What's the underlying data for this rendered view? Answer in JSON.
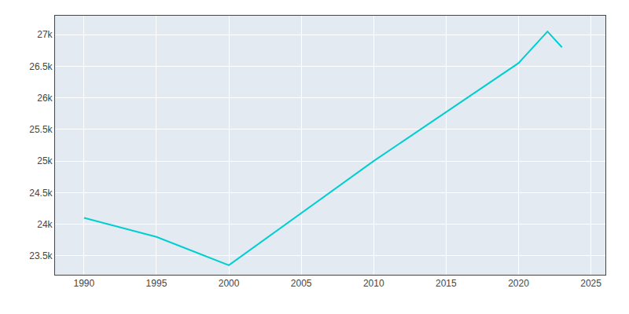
{
  "chart_data": {
    "type": "line",
    "x": [
      1990,
      1995,
      2000,
      2010,
      2020,
      2022,
      2023
    ],
    "values": [
      24100,
      23800,
      23350,
      25000,
      26550,
      27050,
      26800
    ],
    "color": "#00CED1",
    "xlim": [
      1988,
      2026
    ],
    "ylim": [
      23200,
      27300
    ],
    "xticks": [
      1990,
      1995,
      2000,
      2005,
      2010,
      2015,
      2020,
      2025
    ],
    "yticks": [
      {
        "value": 23500,
        "label": "23.5k"
      },
      {
        "value": 24000,
        "label": "24k"
      },
      {
        "value": 24500,
        "label": "24.5k"
      },
      {
        "value": 25000,
        "label": "25k"
      },
      {
        "value": 25500,
        "label": "25.5k"
      },
      {
        "value": 26000,
        "label": "26k"
      },
      {
        "value": 26500,
        "label": "26.5k"
      },
      {
        "value": 27000,
        "label": "27k"
      }
    ],
    "grid": true
  }
}
